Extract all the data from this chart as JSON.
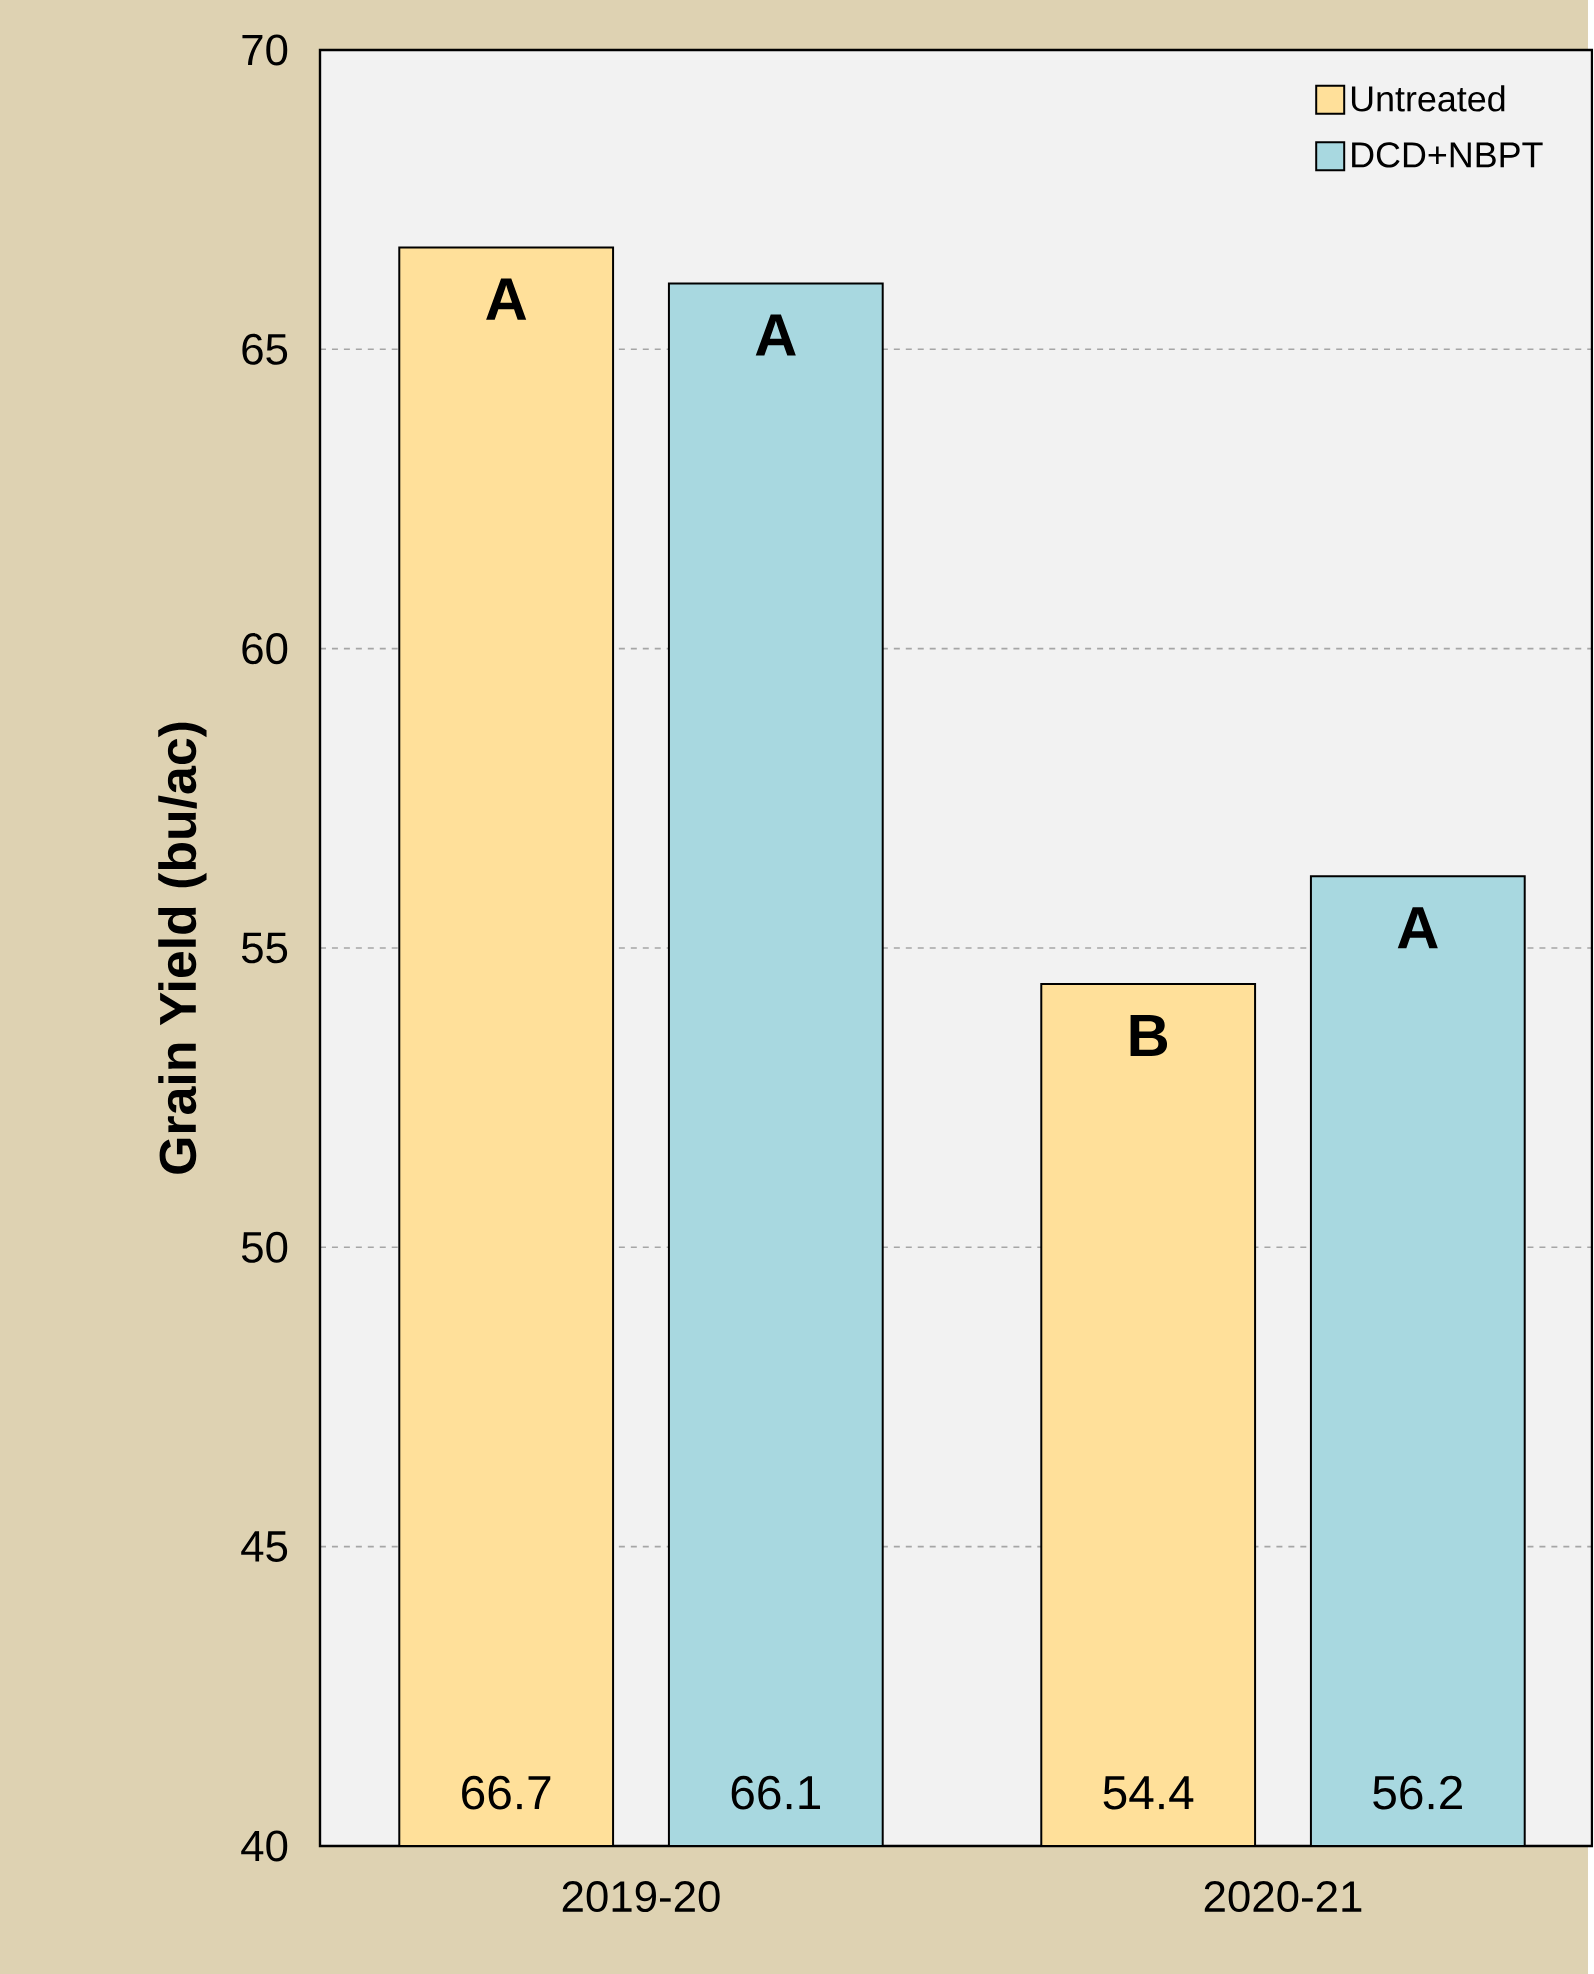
{
  "chart_data": {
    "type": "bar",
    "ylabel": "Grain Yield (bu/ac)",
    "categories": [
      "2019-20",
      "2020-21"
    ],
    "series": [
      {
        "name": "Untreated",
        "color": "#ffe09a",
        "values": [
          66.7,
          54.4
        ]
      },
      {
        "name": "DCD+NBPT",
        "color": "#a8d8e0",
        "values": [
          66.1,
          56.2
        ]
      }
    ],
    "ylim": [
      40,
      70
    ],
    "yticks": [
      40,
      45,
      50,
      55,
      60,
      65,
      70
    ],
    "grid": "y",
    "legend": "top right",
    "data_labels": true,
    "annotations": [
      "A",
      "A",
      "B",
      "A"
    ]
  }
}
